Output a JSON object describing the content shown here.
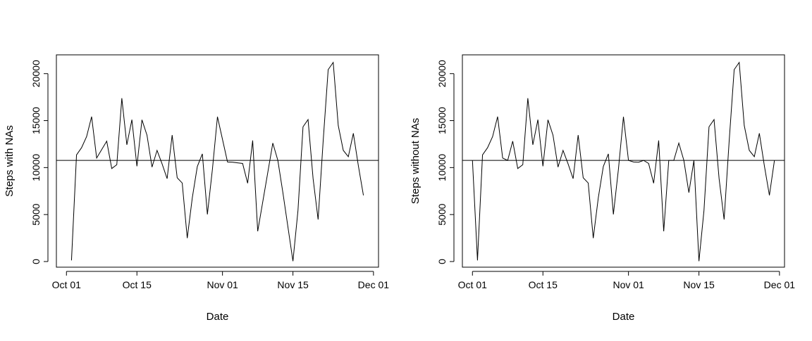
{
  "chart_data": [
    {
      "type": "line",
      "title": "",
      "xlabel": "Date",
      "ylabel": "Steps with NAs",
      "x_ticks": [
        "Oct 01",
        "Oct 15",
        "Nov 01",
        "Nov 15",
        "Dec 01"
      ],
      "y_ticks": [
        "0",
        "5000",
        "10000",
        "15000",
        "20000"
      ],
      "xlim": [
        "2012-09-29",
        "2012-12-02"
      ],
      "ylim": [
        -600,
        22000
      ],
      "hline": 10766,
      "grid": false,
      "x": [
        "2012-10-02",
        "2012-10-03",
        "2012-10-04",
        "2012-10-05",
        "2012-10-06",
        "2012-10-07",
        "2012-10-09",
        "2012-10-10",
        "2012-10-11",
        "2012-10-12",
        "2012-10-13",
        "2012-10-14",
        "2012-10-15",
        "2012-10-16",
        "2012-10-17",
        "2012-10-18",
        "2012-10-19",
        "2012-10-20",
        "2012-10-21",
        "2012-10-22",
        "2012-10-23",
        "2012-10-24",
        "2012-10-25",
        "2012-10-26",
        "2012-10-27",
        "2012-10-28",
        "2012-10-29",
        "2012-10-30",
        "2012-10-31",
        "2012-11-02",
        "2012-11-03",
        "2012-11-05",
        "2012-11-06",
        "2012-11-07",
        "2012-11-08",
        "2012-11-11",
        "2012-11-12",
        "2012-11-13",
        "2012-11-15",
        "2012-11-16",
        "2012-11-17",
        "2012-11-18",
        "2012-11-19",
        "2012-11-20",
        "2012-11-21",
        "2012-11-22",
        "2012-11-23",
        "2012-11-24",
        "2012-11-25",
        "2012-11-26",
        "2012-11-27",
        "2012-11-28",
        "2012-11-29"
      ],
      "series": [
        {
          "values": [
            126,
            11352,
            12116,
            13294,
            15420,
            11015,
            12811,
            9900,
            10304,
            17382,
            12426,
            15098,
            10139,
            15084,
            13452,
            10056,
            11829,
            10395,
            8821,
            13460,
            8918,
            8355,
            2492,
            6778,
            10119,
            11458,
            5018,
            9819,
            15414,
            10600,
            10571,
            10439,
            8334,
            12883,
            3219,
            12608,
            10765,
            7336,
            41,
            5441,
            14339,
            15110,
            8841,
            4472,
            12787,
            20427,
            21194,
            14478,
            11834,
            11162,
            13646,
            10183,
            7047
          ]
        }
      ]
    },
    {
      "type": "line",
      "title": "",
      "xlabel": "Date",
      "ylabel": "Steps without NAs",
      "x_ticks": [
        "Oct 01",
        "Oct 15",
        "Nov 01",
        "Nov 15",
        "Dec 01"
      ],
      "y_ticks": [
        "0",
        "5000",
        "10000",
        "15000",
        "20000"
      ],
      "xlim": [
        "2012-09-29",
        "2012-12-02"
      ],
      "ylim": [
        -600,
        22000
      ],
      "hline": 10766,
      "grid": false,
      "x": [
        "2012-10-01",
        "2012-10-02",
        "2012-10-03",
        "2012-10-04",
        "2012-10-05",
        "2012-10-06",
        "2012-10-07",
        "2012-10-08",
        "2012-10-09",
        "2012-10-10",
        "2012-10-11",
        "2012-10-12",
        "2012-10-13",
        "2012-10-14",
        "2012-10-15",
        "2012-10-16",
        "2012-10-17",
        "2012-10-18",
        "2012-10-19",
        "2012-10-20",
        "2012-10-21",
        "2012-10-22",
        "2012-10-23",
        "2012-10-24",
        "2012-10-25",
        "2012-10-26",
        "2012-10-27",
        "2012-10-28",
        "2012-10-29",
        "2012-10-30",
        "2012-10-31",
        "2012-11-01",
        "2012-11-02",
        "2012-11-03",
        "2012-11-04",
        "2012-11-05",
        "2012-11-06",
        "2012-11-07",
        "2012-11-08",
        "2012-11-09",
        "2012-11-10",
        "2012-11-11",
        "2012-11-12",
        "2012-11-13",
        "2012-11-14",
        "2012-11-15",
        "2012-11-16",
        "2012-11-17",
        "2012-11-18",
        "2012-11-19",
        "2012-11-20",
        "2012-11-21",
        "2012-11-22",
        "2012-11-23",
        "2012-11-24",
        "2012-11-25",
        "2012-11-26",
        "2012-11-27",
        "2012-11-28",
        "2012-11-29",
        "2012-11-30"
      ],
      "series": [
        {
          "values": [
            10766,
            126,
            11352,
            12116,
            13294,
            15420,
            11015,
            10766,
            12811,
            9900,
            10304,
            17382,
            12426,
            15098,
            10139,
            15084,
            13452,
            10056,
            11829,
            10395,
            8821,
            13460,
            8918,
            8355,
            2492,
            6778,
            10119,
            11458,
            5018,
            9819,
            15414,
            10766,
            10600,
            10571,
            10766,
            10439,
            8334,
            12883,
            3219,
            10766,
            10766,
            12608,
            10765,
            7336,
            10766,
            41,
            5441,
            14339,
            15110,
            8841,
            4472,
            12787,
            20427,
            21194,
            14478,
            11834,
            11162,
            13646,
            10183,
            7047,
            10766
          ]
        }
      ]
    }
  ]
}
